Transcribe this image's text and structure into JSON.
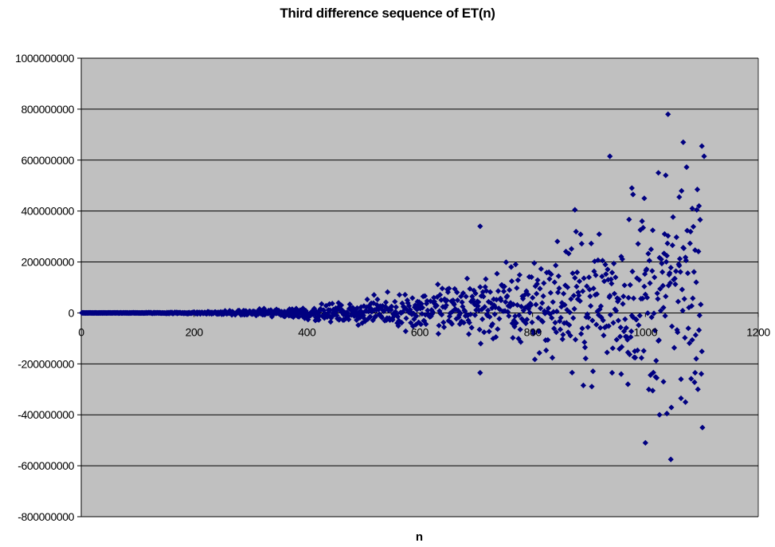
{
  "chart_data": {
    "type": "scatter",
    "title": "Third difference sequence of ET(n)",
    "xlabel": "n",
    "ylabel": "",
    "xlim": [
      0,
      1200
    ],
    "ylim": [
      -800000000,
      1000000000
    ],
    "x_ticks": [
      0,
      200,
      400,
      600,
      800,
      1000,
      1200
    ],
    "x_tick_labels": [
      "0",
      "200",
      "400",
      "600",
      "800",
      "1000",
      "1200"
    ],
    "y_ticks": [
      -800000000,
      -600000000,
      -400000000,
      -200000000,
      0,
      200000000,
      400000000,
      600000000,
      800000000,
      1000000000
    ],
    "y_tick_labels": [
      "-800000000",
      "-600000000",
      "-400000000",
      "-200000000",
      "0",
      "200000000",
      "400000000",
      "600000000",
      "800000000",
      "1000000000"
    ],
    "grid": "horizontal",
    "legend": "none",
    "plot_background": "#c0c0c0",
    "marker_color": "#000080",
    "marker": "diamond",
    "x_max_n": 1100,
    "envelope": [
      [
        0,
        0
      ],
      [
        100,
        1500000
      ],
      [
        200,
        5000000
      ],
      [
        300,
        15000000
      ],
      [
        400,
        35000000
      ],
      [
        500,
        60000000
      ],
      [
        550,
        80000000
      ],
      [
        600,
        110000000
      ],
      [
        650,
        140000000
      ],
      [
        700,
        170000000
      ],
      [
        750,
        220000000
      ],
      [
        800,
        260000000
      ],
      [
        850,
        300000000
      ],
      [
        900,
        360000000
      ],
      [
        950,
        420000000
      ],
      [
        1000,
        480000000
      ],
      [
        1050,
        560000000
      ],
      [
        1100,
        620000000
      ]
    ],
    "highlighted_points": [
      {
        "x": 707,
        "y": 340000000
      },
      {
        "x": 707,
        "y": -235000000
      },
      {
        "x": 875,
        "y": 405000000
      },
      {
        "x": 937,
        "y": 615000000
      },
      {
        "x": 976,
        "y": 490000000
      },
      {
        "x": 978,
        "y": 465000000
      },
      {
        "x": 998,
        "y": 450000000
      },
      {
        "x": 1000,
        "y": -510000000
      },
      {
        "x": 1013,
        "y": -305000000
      },
      {
        "x": 1023,
        "y": 550000000
      },
      {
        "x": 1025,
        "y": -400000000
      },
      {
        "x": 1036,
        "y": 540000000
      },
      {
        "x": 1040,
        "y": 780000000
      },
      {
        "x": 1045,
        "y": -575000000
      },
      {
        "x": 1060,
        "y": 455000000
      },
      {
        "x": 1063,
        "y": -335000000
      },
      {
        "x": 1067,
        "y": 670000000
      },
      {
        "x": 1071,
        "y": -350000000
      },
      {
        "x": 1100,
        "y": 655000000
      },
      {
        "x": 1104,
        "y": 615000000
      },
      {
        "x": 1101,
        "y": -450000000
      },
      {
        "x": 1095,
        "y": 420000000
      },
      {
        "x": 1083,
        "y": 410000000
      },
      {
        "x": 1090,
        "y": -180000000
      },
      {
        "x": 1088,
        "y": -235000000
      },
      {
        "x": 1032,
        "y": -270000000
      },
      {
        "x": 1038,
        "y": -395000000
      },
      {
        "x": 969,
        "y": -280000000
      },
      {
        "x": 957,
        "y": -240000000
      },
      {
        "x": 941,
        "y": -235000000
      }
    ]
  }
}
